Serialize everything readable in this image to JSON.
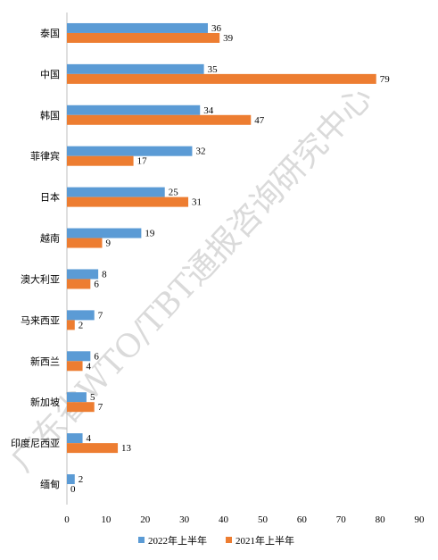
{
  "chart_data": {
    "type": "bar",
    "orientation": "horizontal",
    "categories": [
      "泰国",
      "中国",
      "韩国",
      "菲律宾",
      "日本",
      "越南",
      "澳大利亚",
      "马来西亚",
      "新西兰",
      "新加坡",
      "印度尼西亚",
      "缅甸"
    ],
    "series": [
      {
        "name": "2022年上半年",
        "values": [
          36,
          35,
          34,
          32,
          25,
          19,
          8,
          7,
          6,
          5,
          4,
          2
        ],
        "color": "#5B9BD5"
      },
      {
        "name": "2021年上半年",
        "values": [
          39,
          79,
          47,
          17,
          31,
          9,
          6,
          2,
          4,
          7,
          13,
          0
        ],
        "color": "#ED7D31"
      }
    ],
    "xlim": [
      0,
      90
    ],
    "xticks": [
      "0",
      "10",
      "20",
      "30",
      "40",
      "50",
      "60",
      "70",
      "80",
      "90"
    ],
    "grid": false,
    "legend_position": "bottom",
    "watermark": "广东省WTO/TBT通报咨询研究中心"
  }
}
